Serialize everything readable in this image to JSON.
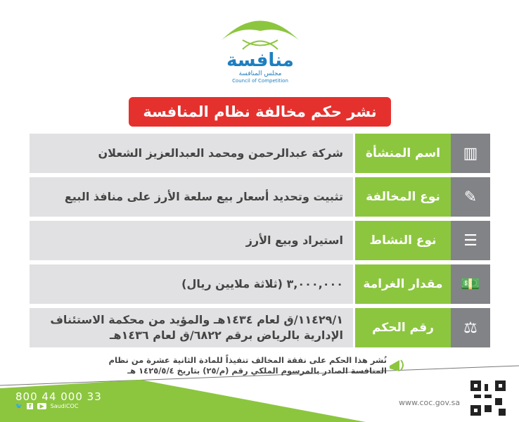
{
  "logo": {
    "name_ar": "منافسة",
    "subtitle_ar": "مجلس المنافسة",
    "subtitle_en": "Council of Competition"
  },
  "title": "نشر حكم مخالفة نظام المنافسة",
  "rows": [
    {
      "label": "اسم المنشأة",
      "value": "شركة عبدالرحمن ومحمد العبدالعزيز الشعلان",
      "icon": "building-icon"
    },
    {
      "label": "نوع المخالفة",
      "value": "تثبيت وتحديد أسعار بيع سلعة الأرز على منافذ البيع",
      "icon": "document-icon"
    },
    {
      "label": "نوع النشاط",
      "value": "استيراد وبيع الأرز",
      "icon": "list-document-icon"
    },
    {
      "label": "مقدار الغرامة",
      "value": "٣,٠٠٠,٠٠٠ (ثلاثة ملايين ريال)",
      "icon": "money-icon"
    },
    {
      "label": "رقم الحكم",
      "value": "١١٤٢٩/١/ق لعام ١٤٣٤هـ والمؤيد من محكمة الاستئناف الإدارية بالرياض برقم ٦٨٢٢/ق لعام ١٤٣٦هـ",
      "icon": "gavel-icon"
    }
  ],
  "notice": "نُشر هذا الحكم على نفقة المخالف تنفيذاً للمادة الثانية عشرة من نظام المنافسة الصادر بالمرسوم الملكي رقم (م/٢٥) بتاريخ ١٤٢٥/٥/٤ هـ",
  "footer": {
    "phone": "800 44 000 33",
    "handle": "SaudiCOC",
    "url": "www.coc.gov.sa"
  },
  "colors": {
    "green": "#8cc63f",
    "red": "#e5312e",
    "gray": "#828387",
    "light": "#e1e1e3",
    "blue": "#1e7fc1"
  }
}
